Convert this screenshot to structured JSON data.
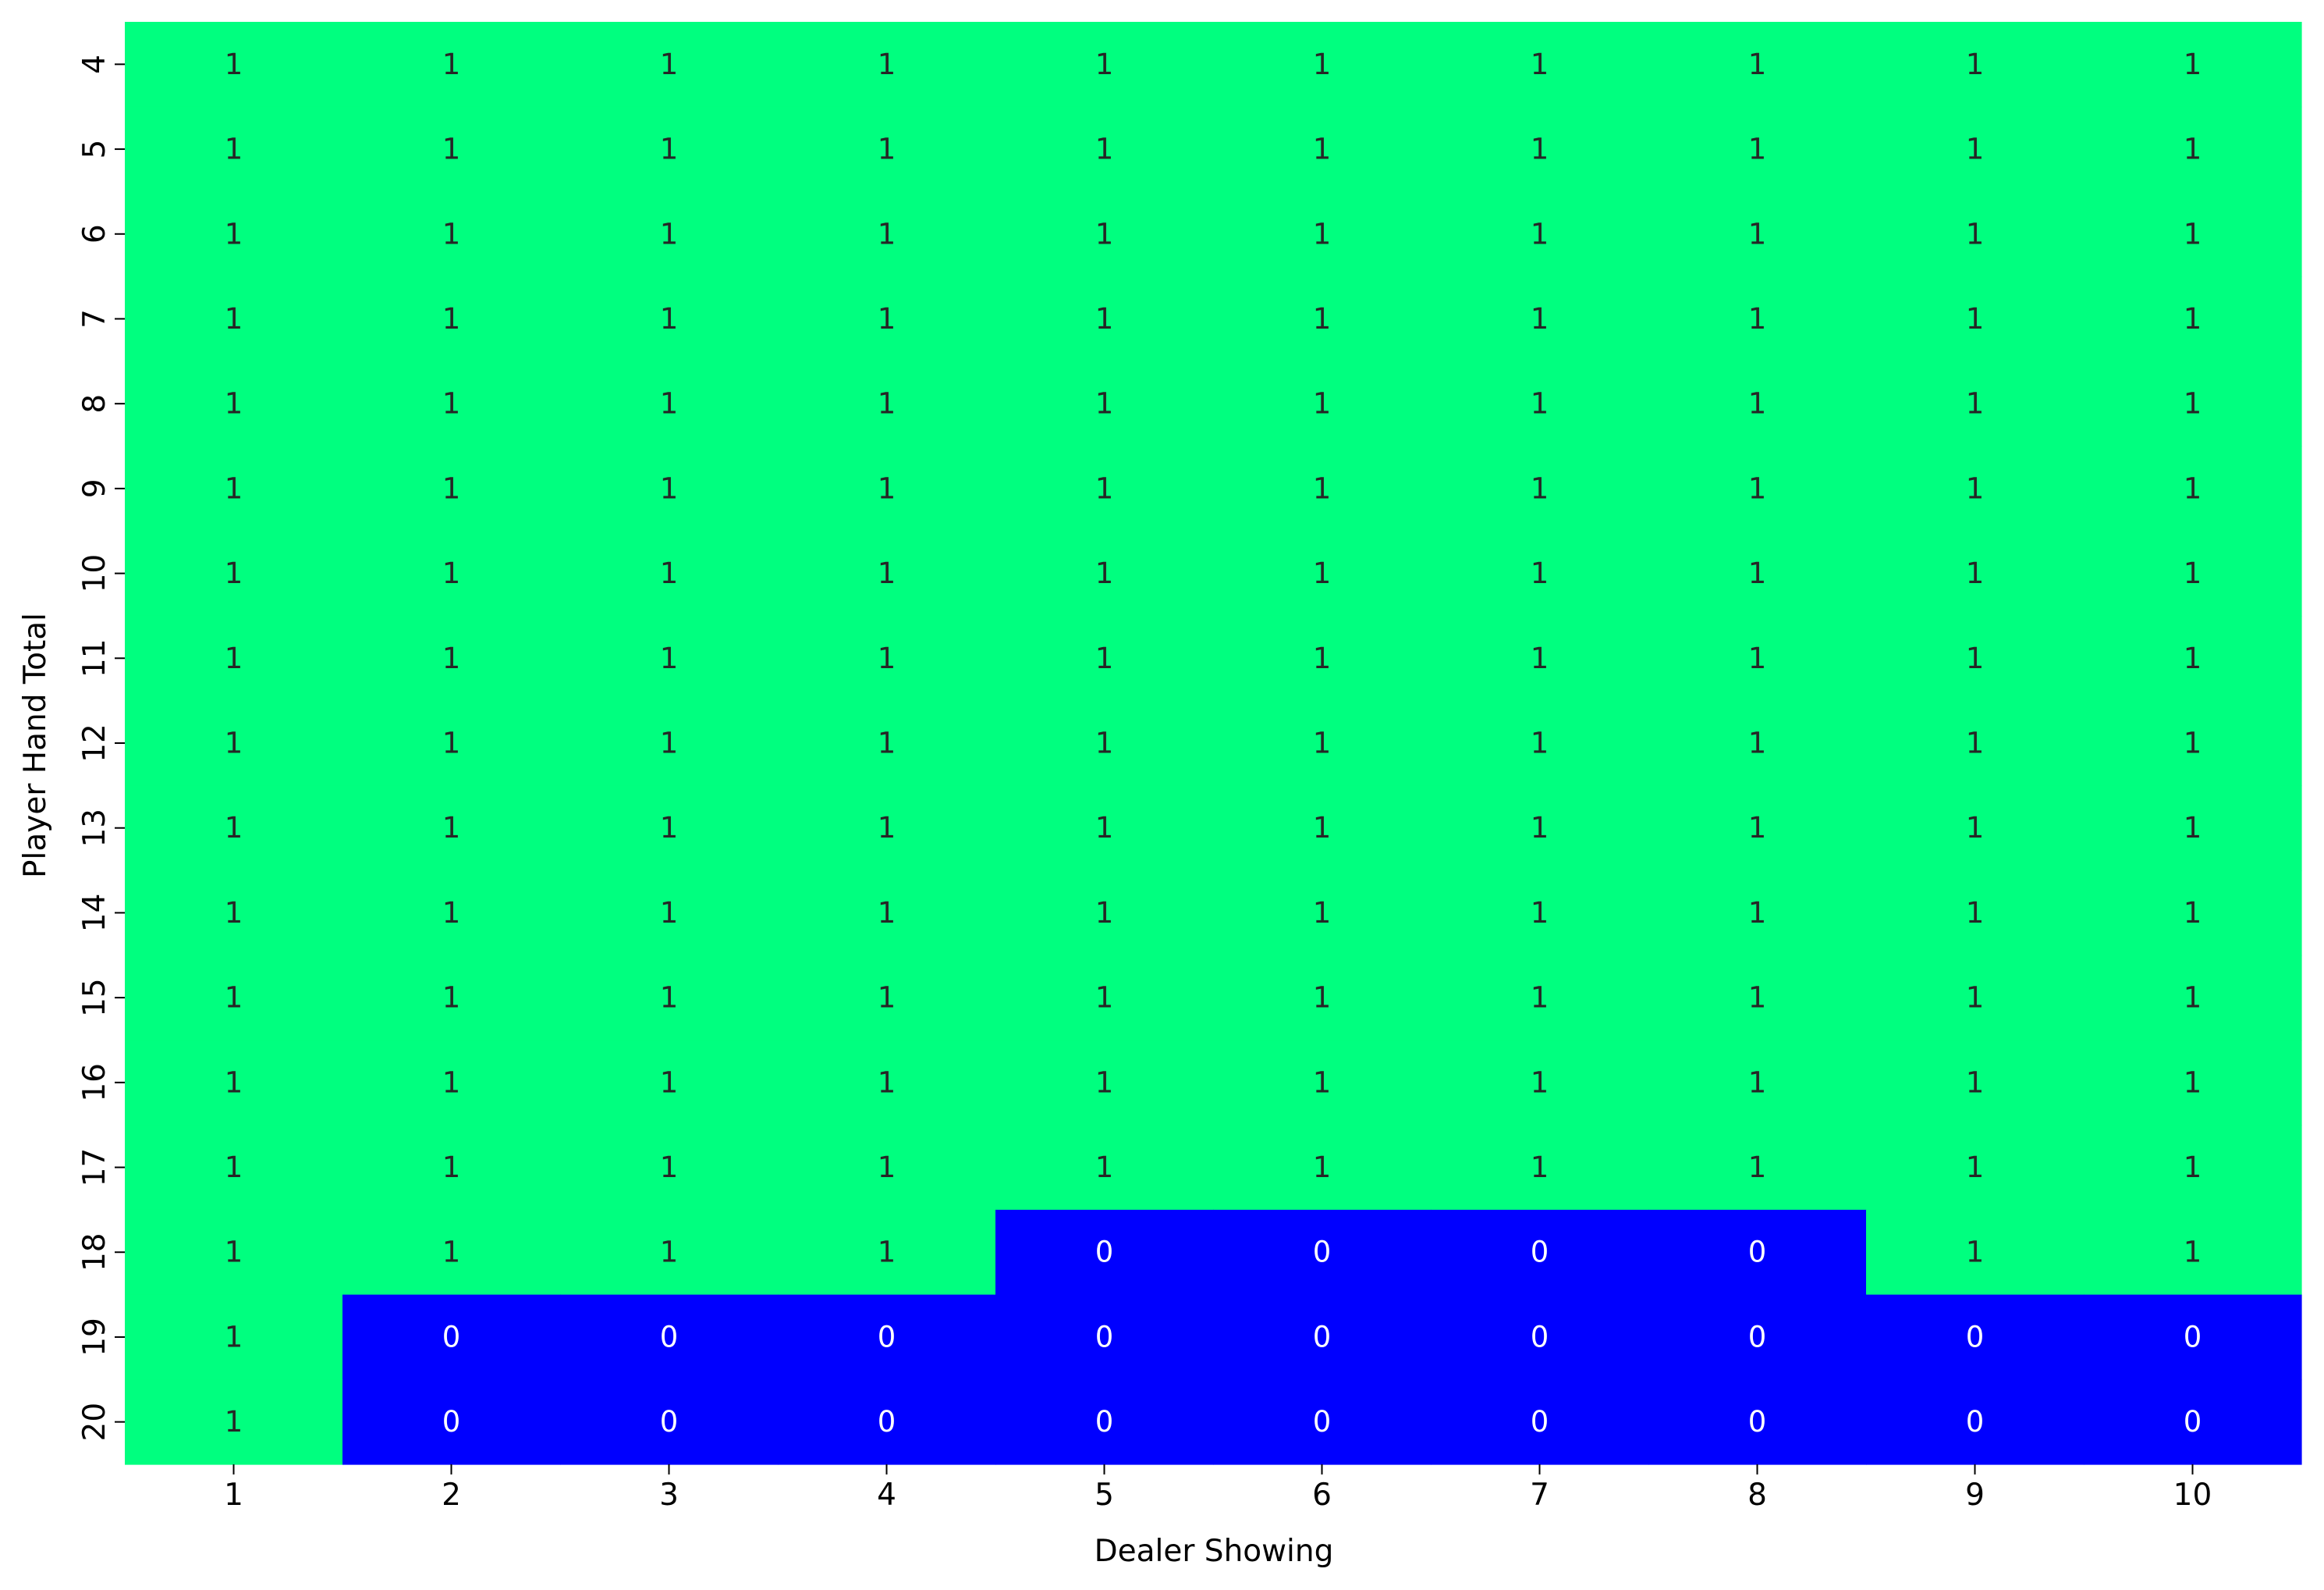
{
  "chart_data": {
    "type": "heatmap",
    "title": "",
    "xlabel": "Dealer Showing",
    "ylabel": "Player Hand Total",
    "x_categories": [
      "1",
      "2",
      "3",
      "4",
      "5",
      "6",
      "7",
      "8",
      "9",
      "10"
    ],
    "y_categories": [
      "4",
      "5",
      "6",
      "7",
      "8",
      "9",
      "10",
      "11",
      "12",
      "13",
      "14",
      "15",
      "16",
      "17",
      "18",
      "19",
      "20"
    ],
    "values": [
      [
        1,
        1,
        1,
        1,
        1,
        1,
        1,
        1,
        1,
        1
      ],
      [
        1,
        1,
        1,
        1,
        1,
        1,
        1,
        1,
        1,
        1
      ],
      [
        1,
        1,
        1,
        1,
        1,
        1,
        1,
        1,
        1,
        1
      ],
      [
        1,
        1,
        1,
        1,
        1,
        1,
        1,
        1,
        1,
        1
      ],
      [
        1,
        1,
        1,
        1,
        1,
        1,
        1,
        1,
        1,
        1
      ],
      [
        1,
        1,
        1,
        1,
        1,
        1,
        1,
        1,
        1,
        1
      ],
      [
        1,
        1,
        1,
        1,
        1,
        1,
        1,
        1,
        1,
        1
      ],
      [
        1,
        1,
        1,
        1,
        1,
        1,
        1,
        1,
        1,
        1
      ],
      [
        1,
        1,
        1,
        1,
        1,
        1,
        1,
        1,
        1,
        1
      ],
      [
        1,
        1,
        1,
        1,
        1,
        1,
        1,
        1,
        1,
        1
      ],
      [
        1,
        1,
        1,
        1,
        1,
        1,
        1,
        1,
        1,
        1
      ],
      [
        1,
        1,
        1,
        1,
        1,
        1,
        1,
        1,
        1,
        1
      ],
      [
        1,
        1,
        1,
        1,
        1,
        1,
        1,
        1,
        1,
        1
      ],
      [
        1,
        1,
        1,
        1,
        1,
        1,
        1,
        1,
        1,
        1
      ],
      [
        1,
        1,
        1,
        1,
        0,
        0,
        0,
        0,
        1,
        1
      ],
      [
        1,
        0,
        0,
        0,
        0,
        0,
        0,
        0,
        0,
        0
      ],
      [
        1,
        0,
        0,
        0,
        0,
        0,
        0,
        0,
        0,
        0
      ]
    ],
    "colors": {
      "1": "#00ff7f",
      "0": "#0000ff"
    },
    "annotation_colors": {
      "1": "#262626",
      "0": "#ffffff"
    },
    "colorbar": false,
    "grid": false
  }
}
